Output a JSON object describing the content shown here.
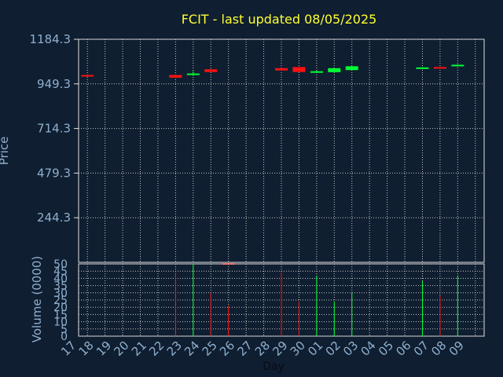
{
  "chart_data": {
    "type": "candlestick",
    "title": "FCIT - last updated 08/05/2025",
    "xlabel": "Day",
    "ylabel": "Price",
    "volume_label": "Volume (0000)",
    "price_ticks": [
      "1184.3",
      "949.3",
      "714.3",
      "479.3",
      "244.3"
    ],
    "price_range": [
      9.3,
      1184.3
    ],
    "volume_ticks": [
      "50",
      "45",
      "40",
      "35",
      "30",
      "25",
      "20",
      "15",
      "10",
      "5",
      "0"
    ],
    "volume_range": [
      0,
      50
    ],
    "days": [
      "17",
      "18",
      "19",
      "20",
      "21",
      "22",
      "23",
      "24",
      "25",
      "26",
      "27",
      "28",
      "29",
      "30",
      "01",
      "02",
      "03",
      "04",
      "05",
      "06",
      "07",
      "08",
      "09"
    ],
    "grid": true,
    "candles": [
      {
        "day": "17",
        "open": 996,
        "close": 990,
        "high": 997,
        "low": 989,
        "color": "red"
      },
      {
        "day": "22",
        "open": 996,
        "close": 982,
        "high": 998,
        "low": 979,
        "color": "red"
      },
      {
        "day": "23",
        "open": 1000,
        "close": 1004,
        "high": 1016,
        "low": 992,
        "color": "green"
      },
      {
        "day": "24",
        "open": 1026,
        "close": 1012,
        "high": 1028,
        "low": 1011,
        "color": "red"
      },
      {
        "day": "25",
        "open": 5,
        "close": 4,
        "high": 6,
        "low": 3,
        "color": "red"
      },
      {
        "day": "28",
        "open": 1032,
        "close": 1020,
        "high": 1033,
        "low": 1019,
        "color": "red"
      },
      {
        "day": "29",
        "open": 1038,
        "close": 1012,
        "high": 1039,
        "low": 1011,
        "color": "red"
      },
      {
        "day": "30",
        "open": 1012,
        "close": 1016,
        "high": 1019,
        "low": 1007,
        "color": "green"
      },
      {
        "day": "01",
        "open": 1011,
        "close": 1032,
        "high": 1034,
        "low": 1009,
        "color": "green"
      },
      {
        "day": "02",
        "open": 1022,
        "close": 1042,
        "high": 1043,
        "low": 1021,
        "color": "green"
      },
      {
        "day": "06",
        "open": 1032,
        "close": 1036,
        "high": 1038,
        "low": 1030,
        "color": "green"
      },
      {
        "day": "07",
        "open": 1038,
        "close": 1032,
        "high": 1039,
        "low": 1031,
        "color": "red"
      },
      {
        "day": "08",
        "open": 1046,
        "close": 1050,
        "high": 1053,
        "low": 1044,
        "color": "green"
      }
    ],
    "volume": [
      {
        "day": "22",
        "value": 44,
        "color": "red"
      },
      {
        "day": "23",
        "value": 50,
        "color": "green"
      },
      {
        "day": "24",
        "value": 30,
        "color": "red"
      },
      {
        "day": "25",
        "value": 21,
        "color": "red"
      },
      {
        "day": "28",
        "value": 44,
        "color": "red"
      },
      {
        "day": "29",
        "value": 24,
        "color": "red"
      },
      {
        "day": "30",
        "value": 42,
        "color": "green"
      },
      {
        "day": "01",
        "value": 24,
        "color": "green"
      },
      {
        "day": "02",
        "value": 30,
        "color": "green"
      },
      {
        "day": "06",
        "value": 38,
        "color": "green"
      },
      {
        "day": "07",
        "value": 28,
        "color": "red"
      },
      {
        "day": "08",
        "value": 42,
        "color": "green"
      }
    ],
    "colors": {
      "background": "#0f1e30",
      "grid": "#c8c8c8",
      "frame": "#e0e0e0",
      "up": "#00ff33",
      "down": "#ff1111",
      "title": "#ffff33",
      "labels": "#8fb0d0"
    }
  }
}
